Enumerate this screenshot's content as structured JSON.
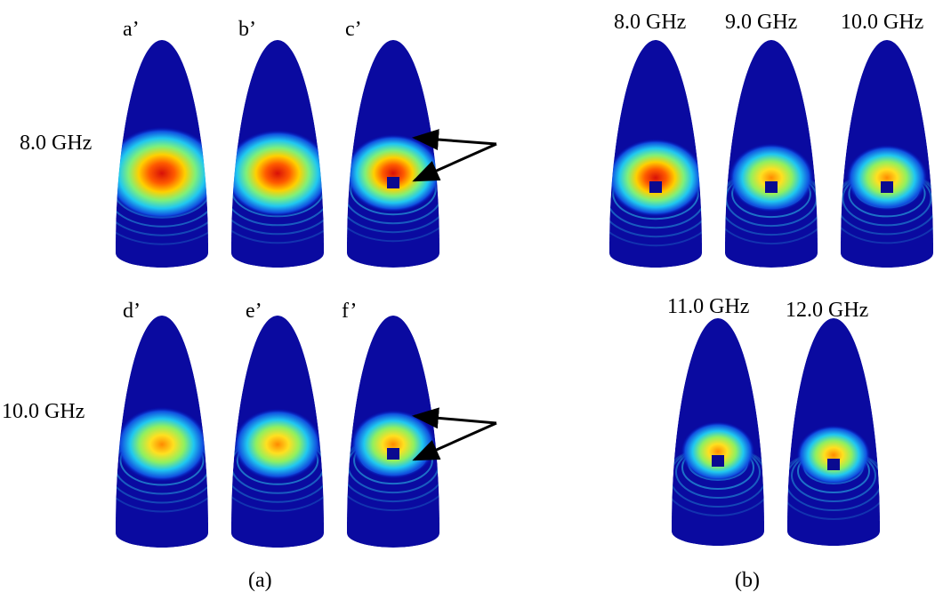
{
  "panel_a": {
    "column_labels_top": [
      "a’",
      "b’",
      "c’"
    ],
    "column_labels_bottom": [
      "d’",
      "e’",
      "f’"
    ],
    "row_labels": [
      "8.0 GHz",
      "10.0 GHz"
    ],
    "caption": "(a)"
  },
  "panel_b": {
    "frequency_labels_top": [
      "8.0 GHz",
      "9.0 GHz",
      "10.0 GHz"
    ],
    "frequency_labels_bottom": [
      "11.0 GHz",
      "12.0 GHz"
    ],
    "caption": "(b)"
  }
}
